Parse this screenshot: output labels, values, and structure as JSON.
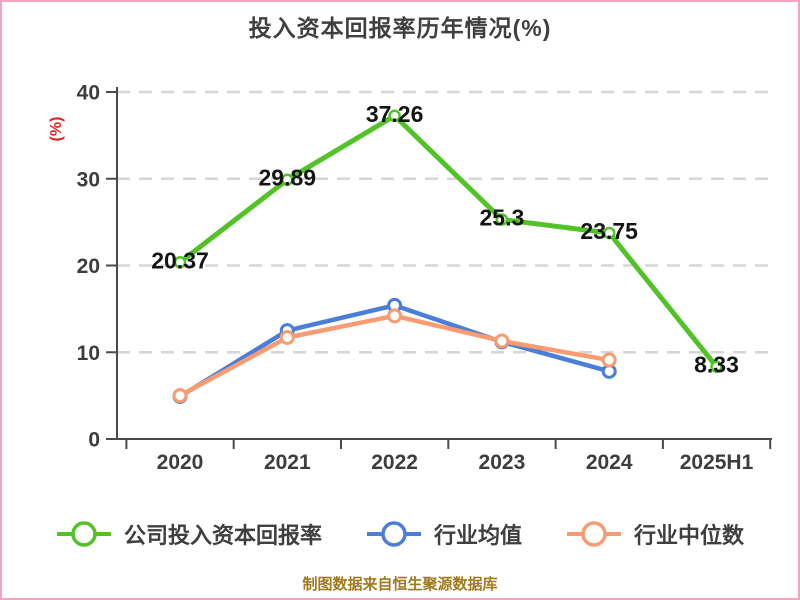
{
  "header": {
    "title": "投入资本回报率历年情况(%)"
  },
  "chart_data": {
    "type": "line",
    "title": "投入资本回报率历年情况(%)",
    "ylabel": "(%)",
    "ylabel_color": "#e02222",
    "ylim": [
      0,
      40
    ],
    "yticks": [
      0,
      10,
      20,
      30,
      40
    ],
    "grid": "horizontal dashed",
    "legend_position": "bottom",
    "categories": [
      "2020",
      "2021",
      "2022",
      "2023",
      "2024",
      "2025H1"
    ],
    "series": [
      {
        "name": "公司投入资本回报率",
        "color": "#52c228",
        "values": [
          20.37,
          29.89,
          37.26,
          25.3,
          23.75,
          8.33
        ],
        "labels": [
          "20.37",
          "29.89",
          "37.26",
          "25.3",
          "23.75",
          "8.33"
        ],
        "show_labels": true
      },
      {
        "name": "行业均值",
        "color": "#4a7ed9",
        "values": [
          4.9,
          12.5,
          15.4,
          11.2,
          7.8,
          null
        ],
        "show_labels": false
      },
      {
        "name": "行业中位数",
        "color": "#f89b71",
        "values": [
          5.0,
          11.7,
          14.2,
          11.3,
          9.1,
          null
        ],
        "show_labels": false
      }
    ]
  },
  "legend": {
    "items": [
      {
        "label": "公司投入资本回报率",
        "color": "#52c228"
      },
      {
        "label": "行业均值",
        "color": "#4a7ed9"
      },
      {
        "label": "行业中位数",
        "color": "#f89b71"
      }
    ]
  },
  "footer": {
    "note": "制图数据来自恒生聚源数据库",
    "color": "#a1791f"
  }
}
